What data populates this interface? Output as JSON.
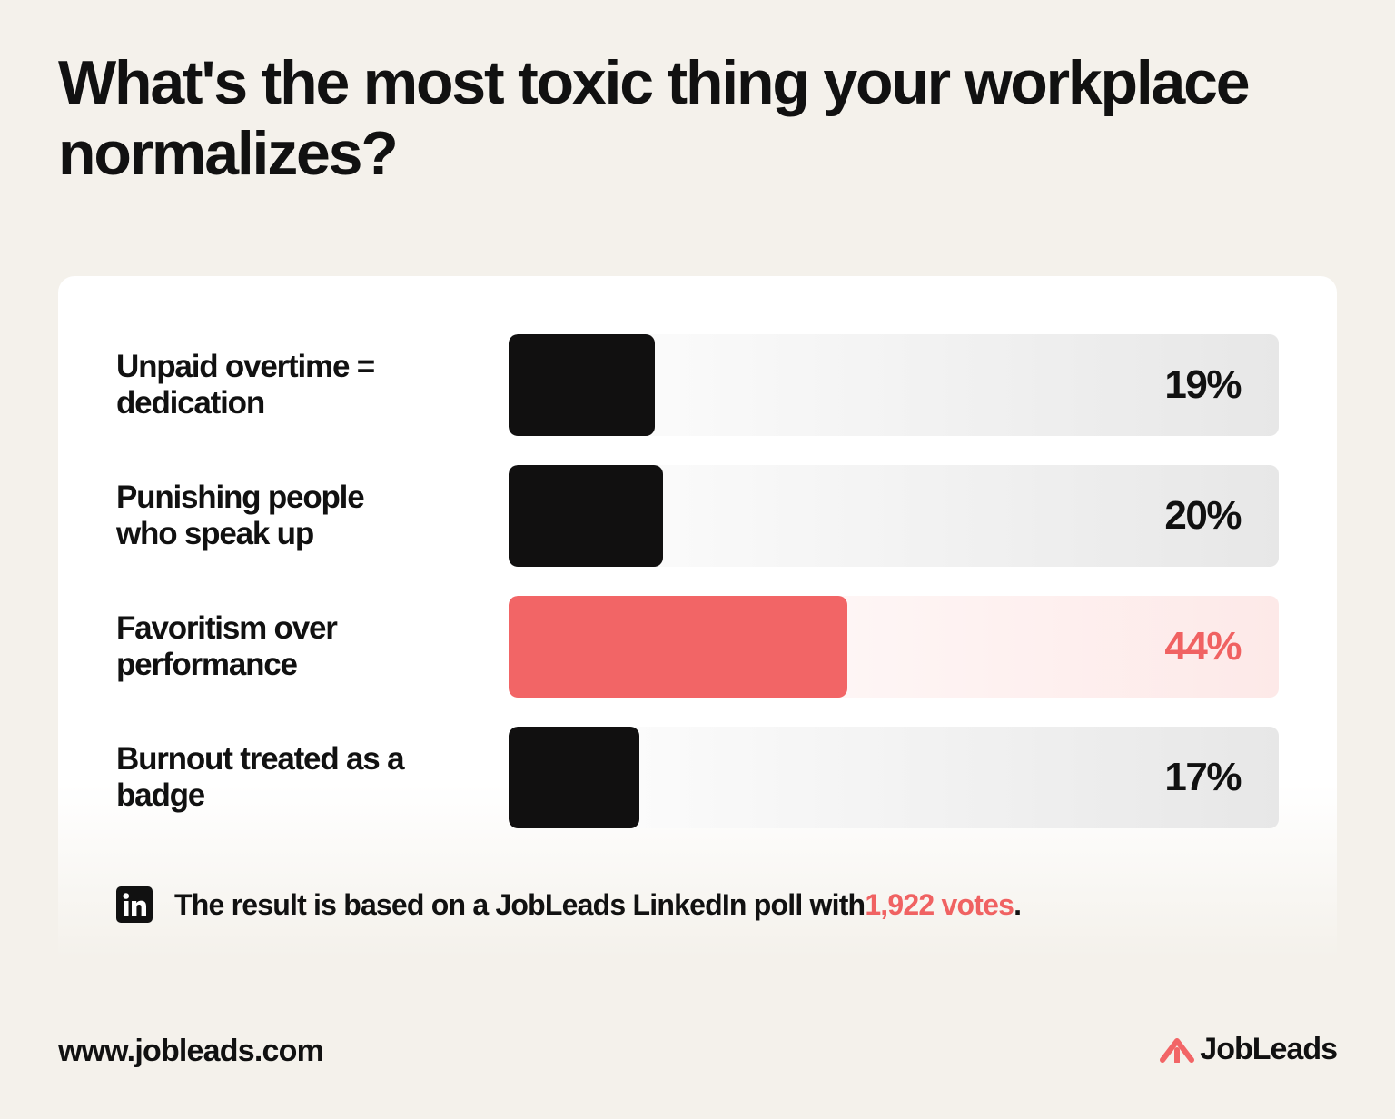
{
  "title": "What's the most toxic thing your workplace normalizes?",
  "chart_data": {
    "type": "bar",
    "orientation": "horizontal",
    "xlim": [
      0,
      100
    ],
    "categories": [
      "Unpaid overtime = dedication",
      "Punishing people who speak up",
      "Favoritism over performance",
      "Burnout treated as a badge"
    ],
    "values": [
      19,
      20,
      44,
      17
    ],
    "value_labels": [
      "19%",
      "20%",
      "44%",
      "17%"
    ],
    "highlight_index": 2,
    "colors": {
      "bar": "#111010",
      "highlight": "#f26566"
    }
  },
  "footnote": {
    "icon": "linkedin-icon",
    "before": "The result is based on a JobLeads LinkedIn poll with ",
    "highlight": "1,922 votes",
    "after": "."
  },
  "footer": {
    "url": "www.jobleads.com",
    "brand": "JobLeads"
  },
  "colors": {
    "background": "#f4f1eb",
    "accent": "#f06262",
    "text": "#111111"
  }
}
